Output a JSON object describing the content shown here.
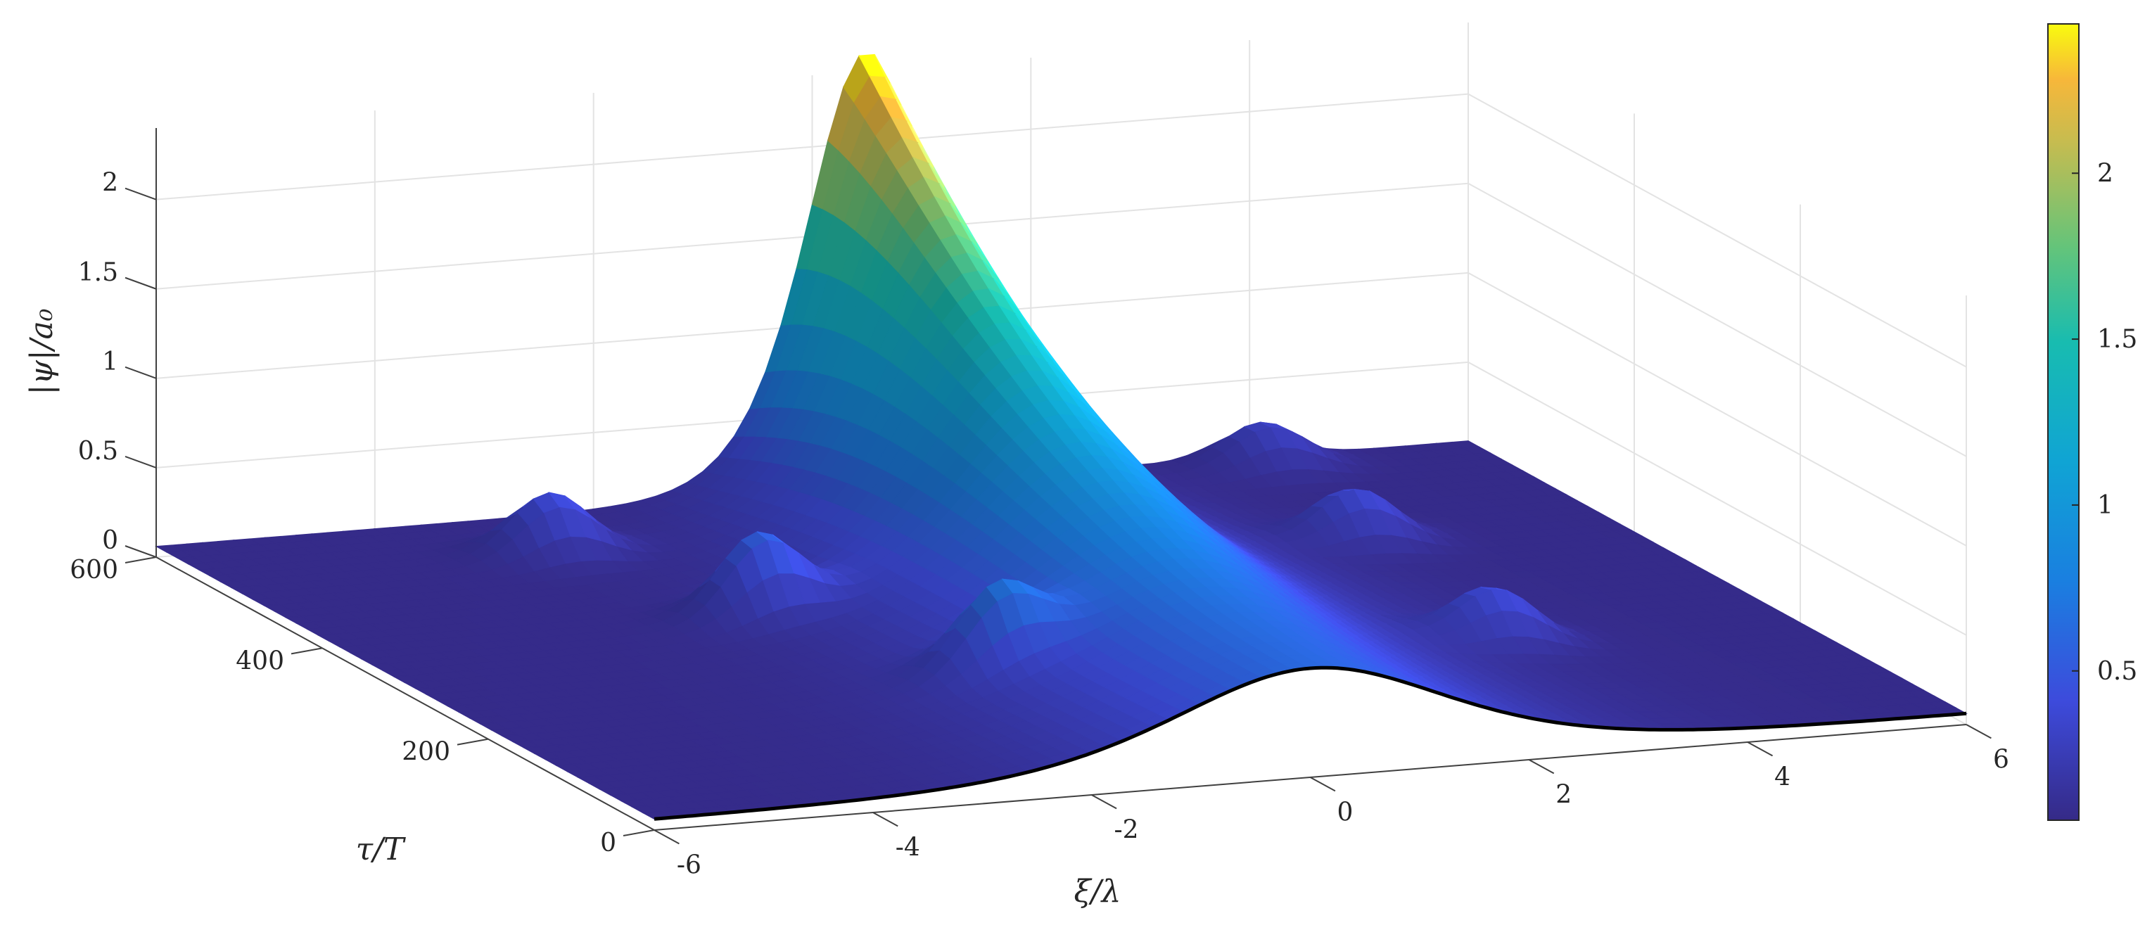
{
  "chart_data": {
    "type": "surface",
    "title": "",
    "xlabel": "ξ/λ",
    "ylabel": "τ/T",
    "zlabel": "|ψ|/a₀",
    "x_ticks": [
      "-6",
      "-4",
      "-2",
      "0",
      "2",
      "4",
      "6"
    ],
    "y_ticks": [
      "0",
      "200",
      "400",
      "600"
    ],
    "z_ticks": [
      "0",
      "0.5",
      "1",
      "1.5",
      "2"
    ],
    "colorbar_ticks": [
      "0.5",
      "1",
      "1.5",
      "2"
    ],
    "xlim": [
      -6,
      6
    ],
    "ylim": [
      0,
      600
    ],
    "zlim": [
      0,
      2.4
    ],
    "clim": [
      0.05,
      2.45
    ],
    "colormap": "parula",
    "grid": true,
    "colorbar_placement": "right",
    "surface_description": {
      "initial_profile_at_tau_0": "sech-like pulse centered at xi = 0 with peak about 0.55",
      "final_peak": {
        "xi": 0.5,
        "tau": 600,
        "value": 2.45
      },
      "side_spots": [
        {
          "xi": -1.5,
          "tau": 180,
          "value": 0.4
        },
        {
          "xi": -2.3,
          "tau": 360,
          "value": 0.45
        },
        {
          "xi": -3.0,
          "tau": 520,
          "value": 0.35
        },
        {
          "xi": 3.2,
          "tau": 200,
          "value": 0.3
        },
        {
          "xi": 3.6,
          "tau": 420,
          "value": 0.3
        },
        {
          "xi": 4.0,
          "tau": 580,
          "value": 0.25
        }
      ]
    }
  }
}
